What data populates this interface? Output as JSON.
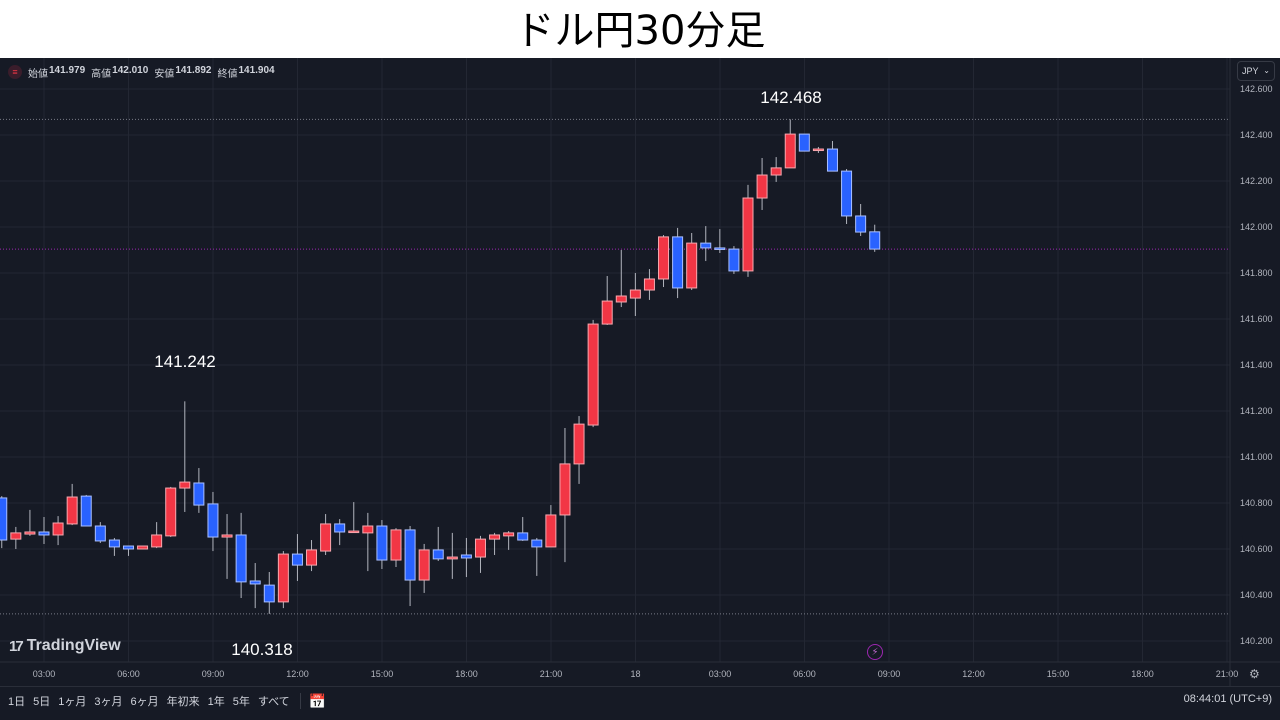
{
  "title": "ドル円30分足",
  "legend": {
    "icon": "menu-icon",
    "open_label": "始値",
    "open": "141.979",
    "high_label": "高値",
    "high": "142.010",
    "low_label": "安値",
    "low": "141.892",
    "close_label": "終値",
    "close": "141.904"
  },
  "currency": "JPY",
  "annotations": {
    "high": "142.468",
    "spike": "141.242",
    "low": "140.318"
  },
  "logo": "TradingView",
  "range_buttons": [
    "1日",
    "5日",
    "1ヶ月",
    "3ヶ月",
    "6ヶ月",
    "年初来",
    "1年",
    "5年",
    "すべて"
  ],
  "clock": "08:44:01 (UTC+9)",
  "colors": {
    "up": "#f23645",
    "down": "#2962ff",
    "background": "#161a25",
    "grid": "#232733",
    "current_price_line": "#9c27b0",
    "extreme_line": "#787b86"
  },
  "chart_data": {
    "type": "candlestick",
    "title": "ドル円30分足",
    "interval": "30分",
    "ylim": [
      140.2,
      142.6
    ],
    "yticks": [
      "142.600",
      "142.400",
      "142.200",
      "142.000",
      "141.800",
      "141.600",
      "141.400",
      "141.200",
      "141.000",
      "140.800",
      "140.600",
      "140.400",
      "140.200"
    ],
    "xticks": [
      "03:00",
      "06:00",
      "09:00",
      "12:00",
      "15:00",
      "18:00",
      "21:00",
      "18",
      "03:00",
      "06:00",
      "09:00",
      "12:00",
      "15:00",
      "18:00",
      "21:00"
    ],
    "grid": true,
    "horizontal_lines": [
      142.468,
      140.318
    ],
    "current_price": 141.904,
    "ohlc_fields": [
      "open",
      "high",
      "low",
      "close"
    ],
    "first_candle_time": "01:30",
    "candles": [
      [
        140.822,
        140.83,
        140.604,
        140.639
      ],
      [
        140.643,
        140.696,
        140.6,
        140.67
      ],
      [
        140.665,
        140.77,
        140.657,
        140.674
      ],
      [
        140.674,
        140.739,
        140.622,
        140.661
      ],
      [
        140.661,
        140.743,
        140.617,
        140.713
      ],
      [
        140.709,
        140.883,
        140.704,
        140.826
      ],
      [
        140.83,
        140.835,
        140.7,
        140.7
      ],
      [
        140.7,
        140.717,
        140.626,
        140.635
      ],
      [
        140.639,
        140.648,
        140.57,
        140.609
      ],
      [
        140.613,
        140.613,
        140.57,
        140.6
      ],
      [
        140.6,
        140.613,
        140.6,
        140.613
      ],
      [
        140.609,
        140.717,
        140.604,
        140.661
      ],
      [
        140.657,
        140.87,
        140.652,
        140.865
      ],
      [
        140.865,
        141.242,
        140.761,
        140.891
      ],
      [
        140.887,
        140.952,
        140.757,
        140.791
      ],
      [
        140.796,
        140.848,
        140.591,
        140.652
      ],
      [
        140.652,
        140.752,
        140.47,
        140.661
      ],
      [
        140.661,
        140.757,
        140.387,
        140.457
      ],
      [
        140.461,
        140.539,
        140.343,
        140.448
      ],
      [
        140.443,
        140.5,
        140.318,
        140.37
      ],
      [
        140.37,
        140.591,
        140.343,
        140.578
      ],
      [
        140.578,
        140.665,
        140.461,
        140.53
      ],
      [
        140.53,
        140.639,
        140.504,
        140.596
      ],
      [
        140.591,
        140.752,
        140.574,
        140.709
      ],
      [
        140.709,
        140.73,
        140.617,
        140.674
      ],
      [
        140.674,
        140.804,
        140.674,
        140.678
      ],
      [
        140.67,
        140.757,
        140.504,
        140.7
      ],
      [
        140.7,
        140.726,
        140.513,
        140.552
      ],
      [
        140.552,
        140.691,
        140.522,
        140.683
      ],
      [
        140.683,
        140.7,
        140.352,
        140.465
      ],
      [
        140.465,
        140.622,
        140.409,
        140.596
      ],
      [
        140.596,
        140.696,
        140.548,
        140.557
      ],
      [
        140.557,
        140.67,
        140.47,
        140.565
      ],
      [
        140.574,
        140.648,
        140.478,
        140.561
      ],
      [
        140.565,
        140.657,
        140.496,
        140.643
      ],
      [
        140.643,
        140.67,
        140.574,
        140.661
      ],
      [
        140.657,
        140.678,
        140.596,
        140.67
      ],
      [
        140.67,
        140.739,
        140.635,
        140.639
      ],
      [
        140.639,
        140.648,
        140.483,
        140.609
      ],
      [
        140.609,
        140.791,
        140.609,
        140.748
      ],
      [
        140.748,
        141.126,
        140.543,
        140.97
      ],
      [
        140.97,
        141.178,
        140.883,
        141.143
      ],
      [
        141.139,
        141.596,
        141.13,
        141.578
      ],
      [
        141.578,
        141.787,
        141.574,
        141.678
      ],
      [
        141.674,
        141.9,
        141.652,
        141.7
      ],
      [
        141.691,
        141.8,
        141.613,
        141.726
      ],
      [
        141.726,
        141.817,
        141.683,
        141.774
      ],
      [
        141.774,
        141.965,
        141.739,
        141.957
      ],
      [
        141.957,
        141.996,
        141.691,
        141.735
      ],
      [
        141.735,
        141.974,
        141.726,
        141.93
      ],
      [
        141.93,
        142.004,
        141.852,
        141.909
      ],
      [
        141.909,
        141.991,
        141.887,
        141.904
      ],
      [
        141.904,
        141.917,
        141.796,
        141.809
      ],
      [
        141.809,
        142.183,
        141.783,
        142.126
      ],
      [
        142.126,
        142.3,
        142.074,
        142.226
      ],
      [
        142.226,
        142.304,
        142.196,
        142.257
      ],
      [
        142.257,
        142.468,
        142.257,
        142.404
      ],
      [
        142.404,
        142.404,
        142.33,
        142.33
      ],
      [
        142.335,
        142.348,
        142.322,
        142.339
      ],
      [
        142.339,
        142.374,
        142.243,
        142.243
      ],
      [
        142.243,
        142.252,
        142.013,
        142.048
      ],
      [
        142.048,
        142.1,
        141.961,
        141.978
      ],
      [
        141.979,
        142.01,
        141.892,
        141.904
      ]
    ]
  }
}
